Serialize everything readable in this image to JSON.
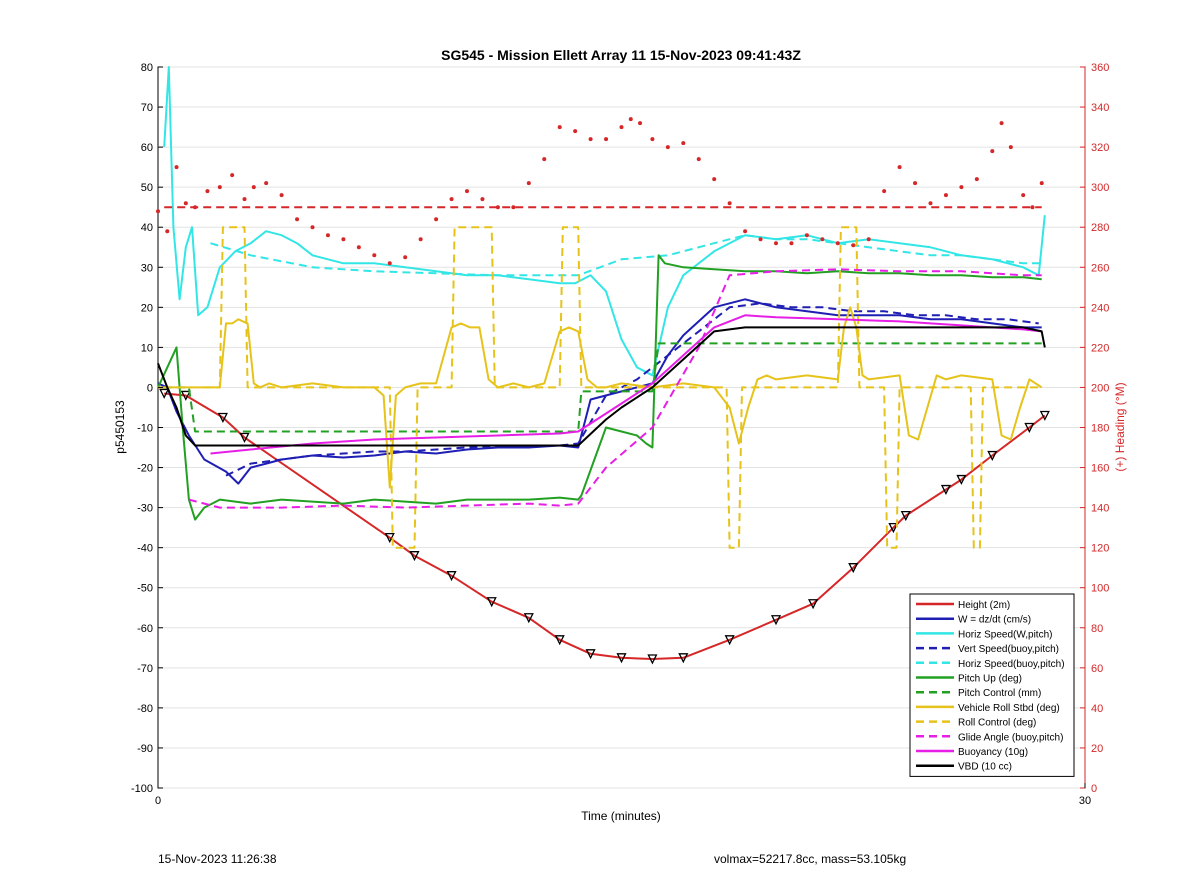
{
  "footer": {
    "timestamp": "15-Nov-2023 11:26:38",
    "volmax_mass": "volmax=52217.8cc, mass=53.105kg"
  },
  "chart_data": {
    "type": "line",
    "title": "SG545 - Mission Ellett Array 11 15-Nov-2023 09:41:43Z",
    "xlabel": "Time (minutes)",
    "ylabel_left": "p5450153",
    "ylabel_right": "(+) Heading (°M)",
    "xlim": [
      0,
      30
    ],
    "ylim_left": [
      -100,
      80
    ],
    "ylim_right": [
      0,
      360
    ],
    "x_ticks": [
      "0",
      "30"
    ],
    "y_ticks_left": [
      "-100",
      "-90",
      "-80",
      "-70",
      "-60",
      "-50",
      "-40",
      "-30",
      "-20",
      "-10",
      "0",
      "10",
      "20",
      "30",
      "40",
      "50",
      "60",
      "70",
      "80"
    ],
    "y_ticks_right": [
      "0",
      "20",
      "40",
      "60",
      "80",
      "100",
      "120",
      "140",
      "160",
      "180",
      "200",
      "220",
      "240",
      "260",
      "280",
      "300",
      "320",
      "340",
      "360"
    ],
    "grid": "horizontal",
    "legend_position": "bottom-right",
    "legend": [
      {
        "label": "Height (2m)",
        "color": "#d62728",
        "style": "solid"
      },
      {
        "label": "W = dz/dt (cm/s)",
        "color": "#1f1fb4",
        "style": "solid"
      },
      {
        "label": "Horiz Speed(W,pitch)",
        "color": "#33e6e6",
        "style": "solid"
      },
      {
        "label": "Vert Speed(buoy,pitch)",
        "color": "#1f1fb4",
        "style": "dashed"
      },
      {
        "label": "Horiz Speed(buoy,pitch)",
        "color": "#33e6e6",
        "style": "dashed"
      },
      {
        "label": "Pitch Up (deg)",
        "color": "#22a022",
        "style": "solid"
      },
      {
        "label": "Pitch Control (mm)",
        "color": "#22a022",
        "style": "dashed"
      },
      {
        "label": "Vehicle Roll Stbd (deg)",
        "color": "#e6c31a",
        "style": "solid"
      },
      {
        "label": "Roll Control (deg)",
        "color": "#e6c31a",
        "style": "dashed"
      },
      {
        "label": "Glide Angle (buoy,pitch)",
        "color": "#e61ee6",
        "style": "dashed"
      },
      {
        "label": "Buoyancy (10g)",
        "color": "#e61ee6",
        "style": "solid"
      },
      {
        "label": "VBD (10 cc)",
        "color": "#000000",
        "style": "solid"
      }
    ],
    "series": [
      {
        "name": "Height (2m)",
        "axis": "left",
        "color": "#d62728",
        "width": 2,
        "marker_every": 1,
        "x": [
          0.2,
          0.9,
          2.1,
          2.8,
          7.5,
          8.3,
          9.5,
          10.8,
          12.0,
          13.0,
          14.0,
          15.0,
          16.0,
          17.0,
          18.5,
          20.0,
          21.2,
          22.5,
          23.8,
          24.2,
          25.5,
          26.0,
          27.0,
          28.2,
          28.7
        ],
        "y": [
          -1.5,
          -2,
          -7.5,
          -12.5,
          -37.5,
          -42,
          -47,
          -53.5,
          -57.5,
          -63,
          -66.5,
          -67.5,
          -67.8,
          -67.5,
          -63,
          -58,
          -54,
          -45,
          -35,
          -32,
          -25.5,
          -23,
          -17,
          -10,
          -7
        ]
      },
      {
        "name": "W = dz/dt (cm/s)",
        "axis": "left",
        "color": "#1f1fb4",
        "width": 2,
        "x": [
          0.0,
          0.3,
          0.6,
          1.0,
          1.5,
          2.2,
          2.6,
          3.0,
          3.5,
          4.0,
          5.0,
          6.0,
          7.0,
          8.0,
          9.0,
          10.0,
          11.0,
          12.0,
          13.0,
          13.6,
          14.0,
          15.0,
          16.0,
          16.5,
          17.0,
          18.0,
          19.0,
          20.0,
          21.0,
          22.0,
          23.0,
          24.0,
          25.0,
          26.0,
          27.0,
          28.0,
          28.6
        ],
        "y": [
          1,
          0,
          -6,
          -12,
          -18,
          -21,
          -24,
          -20,
          -19,
          -18,
          -17,
          -17.5,
          -17,
          -16,
          -16.5,
          -15.5,
          -15,
          -15,
          -14.5,
          -15,
          -3,
          -1,
          1,
          8,
          13,
          20,
          22,
          20,
          19,
          18,
          18,
          18,
          17,
          17,
          16,
          15,
          15
        ]
      },
      {
        "name": "Horiz Speed(W,pitch)",
        "axis": "left",
        "color": "#33e6e6",
        "width": 2,
        "x": [
          0.2,
          0.35,
          0.5,
          0.7,
          0.9,
          1.1,
          1.3,
          1.6,
          2.0,
          2.5,
          3.0,
          3.5,
          4.0,
          4.5,
          5.0,
          6.0,
          7.0,
          8.0,
          9.0,
          10.0,
          11.0,
          12.0,
          13.0,
          13.5,
          14.0,
          14.5,
          15.0,
          15.5,
          16.0,
          16.5,
          17.0,
          18.0,
          19.0,
          20.0,
          21.0,
          22.0,
          23.0,
          24.0,
          25.0,
          26.0,
          27.0,
          28.0,
          28.5,
          28.7
        ],
        "y": [
          60,
          80,
          40,
          22,
          35,
          40,
          18,
          20,
          30,
          34,
          36,
          39,
          38,
          36,
          33,
          31,
          31,
          30,
          29,
          28,
          28,
          27,
          26,
          26,
          28,
          24,
          12,
          5,
          3,
          20,
          28,
          34,
          38,
          37,
          38,
          36,
          37,
          36,
          35,
          33,
          32,
          30,
          28,
          43
        ]
      },
      {
        "name": "Vert Speed(buoy,pitch)",
        "axis": "left",
        "color": "#1f1fb4",
        "width": 2,
        "dashed": true,
        "x": [
          2.2,
          3.0,
          4.0,
          5.0,
          6.0,
          7.0,
          8.0,
          9.0,
          10.0,
          11.0,
          12.0,
          13.0,
          13.6,
          14.5,
          15.5,
          16.5,
          17.5,
          18.5,
          19.5,
          20.5,
          21.5,
          22.5,
          23.5,
          24.5,
          25.5,
          26.5,
          27.5,
          28.5
        ],
        "y": [
          -22,
          -19,
          -18,
          -17,
          -16.5,
          -16,
          -16,
          -15.5,
          -15,
          -15,
          -14.5,
          -14.5,
          -14,
          -2,
          2,
          8,
          14,
          20,
          21,
          20,
          20,
          19,
          19,
          18,
          18,
          17,
          17,
          16
        ]
      },
      {
        "name": "Horiz Speed(buoy,pitch)",
        "axis": "left",
        "color": "#33e6e6",
        "width": 2,
        "dashed": true,
        "x": [
          1.7,
          3.0,
          5.0,
          7.0,
          9.0,
          11.0,
          12.5,
          13.6,
          15.0,
          16.5,
          18.0,
          19.0,
          20.0,
          21.0,
          22.0,
          23.0,
          24.0,
          25.0,
          26.0,
          27.0,
          28.0,
          28.6
        ],
        "y": [
          36,
          33,
          30,
          29,
          28.5,
          28,
          28,
          28,
          32,
          33,
          36,
          38,
          37,
          37,
          36,
          35,
          34,
          33,
          33,
          32,
          31,
          31
        ]
      },
      {
        "name": "Pitch Up (deg)",
        "axis": "left",
        "color": "#22a022",
        "width": 2,
        "x": [
          0.0,
          0.3,
          0.6,
          0.8,
          1.0,
          1.2,
          1.5,
          2.0,
          3.0,
          4.0,
          5.0,
          6.0,
          7.0,
          8.0,
          9.0,
          10.0,
          11.0,
          12.0,
          13.0,
          13.6,
          13.7,
          14.5,
          15.0,
          15.5,
          15.8,
          16.0,
          16.2,
          16.4,
          17.0,
          18.0,
          19.0,
          20.0,
          21.0,
          22.0,
          23.0,
          24.0,
          25.0,
          26.0,
          27.0,
          28.0,
          28.6
        ],
        "y": [
          0,
          5,
          10,
          -10,
          -28,
          -33,
          -30,
          -28,
          -29,
          -28,
          -28.5,
          -29,
          -28,
          -28.5,
          -29,
          -28,
          -28,
          -28,
          -27.5,
          -28,
          -27,
          -10,
          -11,
          -12,
          -14,
          -15,
          33,
          31,
          30,
          29.5,
          29,
          29,
          28.5,
          29,
          28.5,
          28.5,
          28,
          28,
          27.5,
          27.5,
          27
        ]
      },
      {
        "name": "Pitch Control (mm)",
        "axis": "left",
        "color": "#22a022",
        "width": 2,
        "dashed": true,
        "x": [
          0.2,
          1.0,
          1.2,
          3.0,
          6.0,
          9.0,
          12.0,
          13.6,
          13.7,
          16.0,
          16.2,
          20.0,
          25.0,
          28.6
        ],
        "y": [
          0,
          0,
          -11,
          -11,
          -11,
          -11,
          -11,
          -11,
          -1,
          -1,
          11,
          11,
          11,
          11
        ]
      },
      {
        "name": "Vehicle Roll Stbd (deg)",
        "axis": "left",
        "color": "#e6c31a",
        "width": 2,
        "x": [
          0.0,
          1.0,
          2.0,
          2.2,
          2.4,
          2.6,
          2.9,
          3.1,
          3.3,
          3.6,
          4.0,
          5.0,
          6.0,
          7.0,
          7.3,
          7.5,
          7.7,
          8.0,
          8.5,
          9.0,
          9.5,
          9.8,
          10.1,
          10.4,
          10.7,
          11.0,
          11.5,
          12.0,
          12.5,
          13.0,
          13.3,
          13.6,
          13.9,
          14.2,
          14.5,
          15.0,
          16.0,
          17.0,
          18.0,
          18.5,
          18.8,
          19.1,
          19.4,
          19.7,
          20.0,
          21.0,
          22.0,
          22.2,
          22.4,
          22.6,
          22.8,
          23.0,
          24.0,
          24.3,
          24.6,
          24.9,
          25.2,
          25.5,
          26.0,
          27.0,
          27.3,
          27.6,
          27.9,
          28.2,
          28.6
        ],
        "y": [
          0,
          0,
          0,
          16,
          16,
          17,
          16,
          1,
          0,
          1,
          0,
          1,
          0,
          0,
          -2,
          -25,
          -2,
          0,
          1,
          1,
          15,
          16,
          15,
          15,
          2,
          0,
          1,
          0,
          1,
          14,
          15,
          14,
          2,
          0,
          0,
          1,
          0,
          1,
          0,
          -5,
          -14,
          -5,
          2,
          3,
          2,
          3,
          2,
          15,
          20,
          15,
          3,
          2,
          3,
          -12,
          -13,
          -5,
          3,
          2,
          3,
          2,
          -12,
          -13,
          -5,
          2,
          0
        ]
      },
      {
        "name": "Roll Control (deg)",
        "axis": "left",
        "color": "#e6c31a",
        "width": 2,
        "dashed": true,
        "x": [
          1.5,
          2.0,
          2.1,
          2.8,
          2.9,
          7.5,
          7.6,
          8.3,
          8.4,
          9.5,
          9.6,
          10.8,
          10.9,
          13.0,
          13.1,
          13.6,
          13.7,
          17.5,
          18.4,
          18.5,
          18.8,
          18.9,
          22.0,
          22.1,
          22.6,
          22.7,
          23.5,
          23.6,
          23.9,
          24.0,
          26.3,
          26.4,
          26.6,
          26.7,
          28.6
        ],
        "y": [
          0,
          0,
          40,
          40,
          0,
          0,
          -40,
          -40,
          0,
          0,
          40,
          40,
          0,
          0,
          40,
          40,
          0,
          0,
          0,
          -40,
          -40,
          0,
          0,
          40,
          40,
          0,
          0,
          -40,
          -40,
          0,
          0,
          -40,
          -40,
          0,
          0
        ]
      },
      {
        "name": "Glide Angle (buoy,pitch)",
        "axis": "left",
        "color": "#e61ee6",
        "width": 2,
        "dashed": true,
        "x": [
          1.0,
          2.0,
          4.0,
          6.0,
          8.0,
          10.0,
          12.0,
          13.0,
          13.6,
          14.5,
          16.0,
          17.5,
          18.5,
          20.0,
          22.0,
          24.0,
          26.0,
          28.0,
          28.6
        ],
        "y": [
          -28,
          -30,
          -30,
          -29.5,
          -30,
          -29.5,
          -29,
          -29.5,
          -29,
          -20,
          -10,
          10,
          28,
          29,
          29.5,
          29,
          29,
          28,
          28
        ]
      },
      {
        "name": "Buoyancy (10g)",
        "axis": "left",
        "color": "#e61ee6",
        "width": 2,
        "x": [
          1.7,
          3.0,
          5.0,
          7.0,
          9.0,
          11.0,
          13.0,
          13.6,
          15.0,
          16.0,
          17.0,
          18.0,
          19.0,
          20.0,
          22.0,
          24.0,
          26.0,
          28.0,
          28.6
        ],
        "y": [
          -16.5,
          -15.5,
          -14,
          -13,
          -12.5,
          -12,
          -11.5,
          -11,
          -4,
          1,
          8,
          15,
          18,
          17.5,
          17,
          16.5,
          15.5,
          14.5,
          14
        ]
      },
      {
        "name": "VBD (10 cc)",
        "axis": "left",
        "color": "#000000",
        "width": 2,
        "x": [
          0.0,
          0.3,
          0.6,
          0.9,
          1.2,
          3.0,
          6.0,
          9.0,
          12.0,
          13.6,
          14.5,
          15.0,
          16.0,
          17.0,
          18.0,
          19.0,
          20.0,
          22.0,
          24.0,
          26.0,
          28.0,
          28.6,
          28.7
        ],
        "y": [
          6,
          0,
          -5,
          -12,
          -14.5,
          -14.5,
          -14.5,
          -14.5,
          -14.5,
          -14.5,
          -8,
          -5,
          0,
          7,
          14,
          15,
          15,
          15,
          15,
          15,
          15,
          14,
          10
        ]
      },
      {
        "name": "Heading",
        "axis": "right",
        "color": "#d62728",
        "dots": true,
        "x": [
          0.0,
          0.3,
          0.6,
          0.9,
          1.2,
          1.6,
          2.0,
          2.4,
          2.8,
          3.1,
          3.5,
          4.0,
          4.5,
          5.0,
          5.5,
          6.0,
          6.5,
          7.0,
          7.5,
          8.0,
          8.5,
          9.0,
          9.5,
          10.0,
          10.5,
          11.0,
          11.5,
          12.0,
          12.5,
          13.0,
          13.5,
          14.0,
          14.5,
          15.0,
          15.3,
          15.6,
          16.0,
          16.5,
          17.0,
          17.5,
          18.0,
          18.5,
          19.0,
          19.5,
          20.0,
          20.5,
          21.0,
          21.5,
          22.0,
          22.5,
          23.0,
          23.5,
          24.0,
          24.5,
          25.0,
          25.5,
          26.0,
          26.5,
          27.0,
          27.3,
          27.6,
          28.0,
          28.3,
          28.6
        ],
        "y": [
          288,
          278,
          310,
          292,
          290,
          298,
          300,
          306,
          294,
          300,
          302,
          296,
          284,
          280,
          276,
          274,
          270,
          266,
          262,
          265,
          274,
          284,
          294,
          298,
          294,
          290,
          290,
          302,
          314,
          330,
          328,
          324,
          324,
          330,
          334,
          332,
          324,
          320,
          322,
          314,
          304,
          292,
          278,
          274,
          272,
          272,
          276,
          274,
          272,
          271,
          274,
          298,
          310,
          302,
          292,
          296,
          300,
          304,
          318,
          332,
          320,
          296,
          290,
          302
        ]
      },
      {
        "name": "Heading target",
        "axis": "right",
        "color": "#d62728",
        "width": 2,
        "dashed": true,
        "x": [
          0.2,
          28.6
        ],
        "y": [
          290,
          290
        ]
      }
    ]
  }
}
